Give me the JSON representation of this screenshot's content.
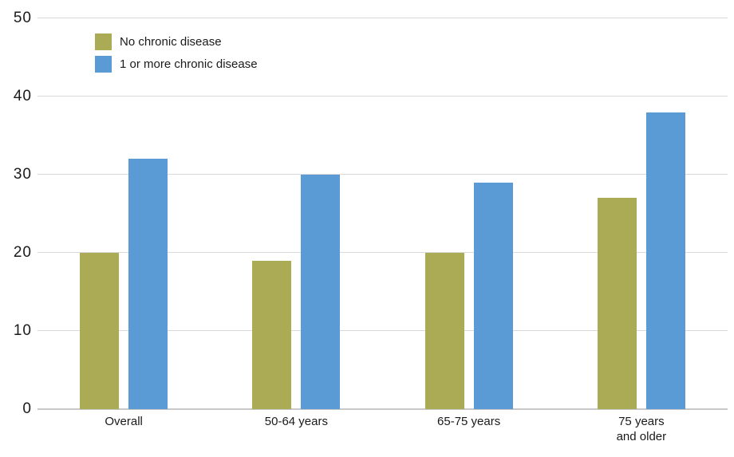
{
  "chart_data": {
    "type": "bar",
    "title": "",
    "xlabel": "",
    "ylabel": "",
    "categories": [
      "Overall",
      "50-64 years",
      "65-75 years",
      "75 years\nand older"
    ],
    "series": [
      {
        "name": "No chronic disease",
        "color": "#ABAB55",
        "values": [
          20,
          19,
          20,
          27
        ]
      },
      {
        "name": "1 or more chronic disease",
        "color": "#5B9BD5",
        "values": [
          32,
          30,
          29,
          38
        ]
      }
    ],
    "ylim": [
      0,
      50
    ],
    "yticks": [
      0,
      10,
      20,
      30,
      40,
      50
    ],
    "grid": true,
    "legend_position": "top-left"
  },
  "colors": {
    "gridline": "#d9d9d9",
    "axis_line": "#c8c8c8",
    "text": "#1a1a1a",
    "background": "#ffffff"
  }
}
